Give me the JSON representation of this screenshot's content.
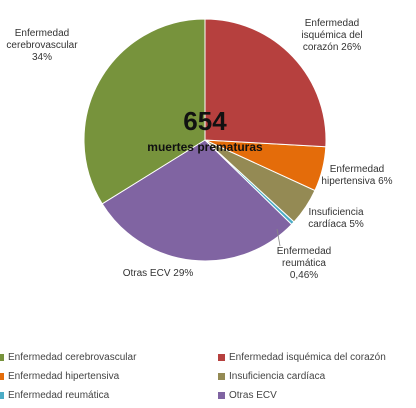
{
  "chart_data": {
    "type": "pie",
    "annotations": [
      "654",
      "muertes prematuras"
    ],
    "categories": [
      "Enfermedad cerebrovascular",
      "Enfermedad isquémica del corazón",
      "Enfermedad hipertensiva",
      "Insuficiencia cardíaca",
      "Enfermedad reumática",
      "Otras ECV"
    ],
    "values": [
      34,
      26,
      6,
      5,
      0.46,
      29
    ],
    "value_labels": [
      "34%",
      "26%",
      "6%",
      "5%",
      "0,46%",
      "29%"
    ],
    "colors": [
      "#77933c",
      "#b6403e",
      "#e46c0a",
      "#948a54",
      "#4bacc6",
      "#8064a2"
    ]
  }
}
